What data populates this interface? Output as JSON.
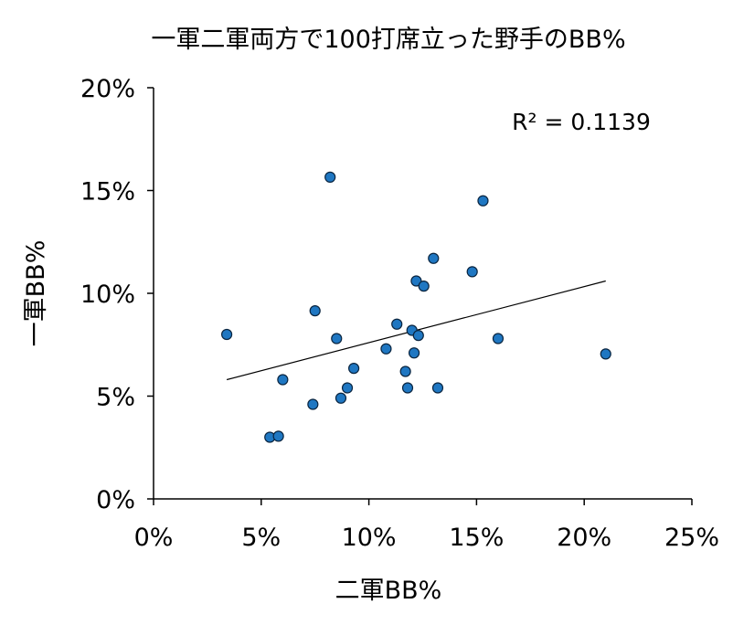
{
  "chart_data": {
    "type": "scatter",
    "title": "一軍二軍両方で100打席立った野手のBB%",
    "xlabel": "二軍BB%",
    "ylabel": "一軍BB%",
    "xlim": [
      0,
      25
    ],
    "ylim": [
      0,
      20
    ],
    "x_ticks": [
      "0%",
      "5%",
      "10%",
      "15%",
      "20%",
      "25%"
    ],
    "y_ticks": [
      "0%",
      "5%",
      "10%",
      "15%",
      "20%"
    ],
    "x_tick_values": [
      0,
      5,
      10,
      15,
      20,
      25
    ],
    "y_tick_values": [
      0,
      5,
      10,
      15,
      20
    ],
    "annotation": "R² = 0.1139",
    "series": [
      {
        "points": [
          {
            "x": 3.4,
            "y": 8.0
          },
          {
            "x": 5.4,
            "y": 3.0
          },
          {
            "x": 5.8,
            "y": 3.05
          },
          {
            "x": 6.0,
            "y": 5.8
          },
          {
            "x": 7.4,
            "y": 4.6
          },
          {
            "x": 7.5,
            "y": 9.15
          },
          {
            "x": 8.2,
            "y": 15.65
          },
          {
            "x": 8.5,
            "y": 7.8
          },
          {
            "x": 8.7,
            "y": 4.9
          },
          {
            "x": 9.0,
            "y": 5.4
          },
          {
            "x": 9.3,
            "y": 6.35
          },
          {
            "x": 10.8,
            "y": 7.3
          },
          {
            "x": 11.3,
            "y": 8.5
          },
          {
            "x": 11.7,
            "y": 6.2
          },
          {
            "x": 11.8,
            "y": 5.4
          },
          {
            "x": 12.0,
            "y": 8.2
          },
          {
            "x": 12.1,
            "y": 7.1
          },
          {
            "x": 12.2,
            "y": 10.6
          },
          {
            "x": 12.3,
            "y": 7.95
          },
          {
            "x": 12.55,
            "y": 10.35
          },
          {
            "x": 13.0,
            "y": 11.7
          },
          {
            "x": 13.2,
            "y": 5.4
          },
          {
            "x": 14.8,
            "y": 11.05
          },
          {
            "x": 15.3,
            "y": 14.5
          },
          {
            "x": 16.0,
            "y": 7.8
          },
          {
            "x": 21.0,
            "y": 7.05
          }
        ]
      }
    ],
    "trendline": {
      "x": [
        3.4,
        21.0
      ],
      "y": [
        5.8,
        10.6
      ]
    }
  }
}
